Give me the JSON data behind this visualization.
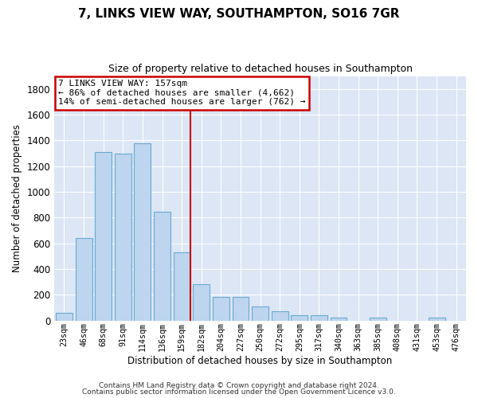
{
  "title": "7, LINKS VIEW WAY, SOUTHAMPTON, SO16 7GR",
  "subtitle": "Size of property relative to detached houses in Southampton",
  "xlabel": "Distribution of detached houses by size in Southampton",
  "ylabel": "Number of detached properties",
  "bar_labels": [
    "23sqm",
    "46sqm",
    "68sqm",
    "91sqm",
    "114sqm",
    "136sqm",
    "159sqm",
    "182sqm",
    "204sqm",
    "227sqm",
    "250sqm",
    "272sqm",
    "295sqm",
    "317sqm",
    "340sqm",
    "363sqm",
    "385sqm",
    "408sqm",
    "431sqm",
    "453sqm",
    "476sqm"
  ],
  "bar_values": [
    60,
    640,
    1310,
    1300,
    1375,
    845,
    530,
    280,
    185,
    185,
    110,
    75,
    40,
    40,
    25,
    0,
    20,
    0,
    0,
    20,
    0
  ],
  "bar_color": "#bdd5ee",
  "bar_edge_color": "#6aaad4",
  "red_line_index": 6,
  "annotation_title": "7 LINKS VIEW WAY: 157sqm",
  "annotation_line1": "← 86% of detached houses are smaller (4,662)",
  "annotation_line2": "14% of semi-detached houses are larger (762) →",
  "annotation_box_color": "#ffffff",
  "annotation_box_edge": "#cc0000",
  "red_line_color": "#cc0000",
  "ylim": [
    0,
    1900
  ],
  "yticks": [
    0,
    200,
    400,
    600,
    800,
    1000,
    1200,
    1400,
    1600,
    1800
  ],
  "bg_color": "#dce6f5",
  "fig_bg_color": "#ffffff",
  "footer1": "Contains HM Land Registry data © Crown copyright and database right 2024.",
  "footer2": "Contains public sector information licensed under the Open Government Licence v3.0."
}
